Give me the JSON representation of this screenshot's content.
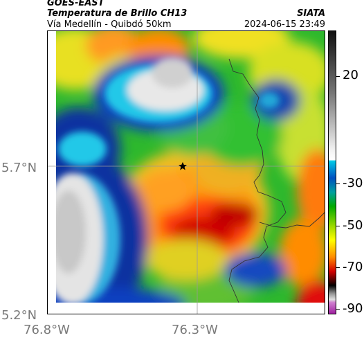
{
  "header": {
    "line1": "GOES-EAST",
    "line2": "Temperatura de Brillo CH13",
    "line3": "Vía Medellín - Quibdó 50km",
    "source": "SIATA",
    "datetime": "2024-06-15 23:49"
  },
  "axes": {
    "y_ticks": [
      "5.7°N",
      "5.2°N"
    ],
    "x_ticks": [
      "76.8°W",
      "76.3°W"
    ]
  },
  "colorbar": {
    "labels": [
      "20",
      "-30",
      "-50",
      "-70",
      "-90"
    ],
    "colors": [
      "#1a1a1a",
      "#ffffff",
      "#00c8e6",
      "#00aa00",
      "#ffff00",
      "#ff8c00",
      "#d40000",
      "#000000",
      "#bbbbbb",
      "#a020a0"
    ]
  },
  "map": {
    "marker": "star-icon",
    "grid_lines": true
  }
}
